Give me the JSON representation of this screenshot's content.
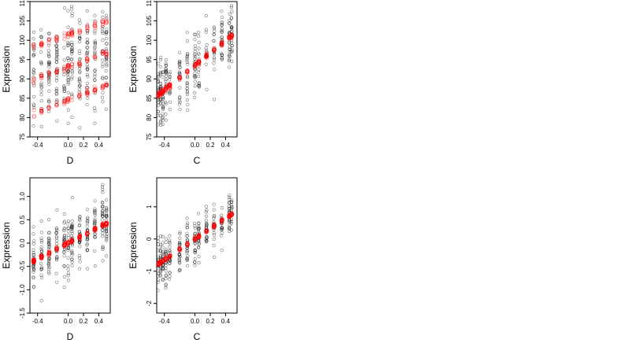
{
  "chart_data": [
    {
      "type": "scatter",
      "xlabel": "D",
      "ylabel": "Expression",
      "xlim": [
        -0.5,
        0.55
      ],
      "ylim": [
        75,
        110
      ],
      "xticks": [
        -0.4,
        0.0,
        0.2,
        0.4
      ],
      "xtick_labels": [
        "-0.4",
        "0.0",
        "0.2",
        "0.4"
      ],
      "yticks": [
        75,
        80,
        85,
        90,
        95,
        100,
        105,
        110
      ],
      "ytick_labels": [
        "75",
        "80",
        "85",
        "90",
        "95",
        "100",
        "105",
        "110"
      ],
      "x_levels": [
        -0.45,
        -0.35,
        -0.25,
        -0.15,
        -0.05,
        0.0,
        0.05,
        0.15,
        0.25,
        0.35,
        0.45,
        0.5
      ],
      "observed": {
        "color": "#000000",
        "n": 300,
        "spread": 6.5,
        "center_intercept": 93.5,
        "center_slope": 6.0
      },
      "fitted": {
        "color": "#ff0000",
        "bands": [
          {
            "intercept": 84.5,
            "slope": 7.5
          },
          {
            "intercept": 93.0,
            "slope": 7.0
          },
          {
            "intercept": 101.5,
            "slope": 6.5
          }
        ]
      },
      "grid": false
    },
    {
      "type": "scatter",
      "xlabel": "C",
      "ylabel": "Expression",
      "xlim": [
        -0.5,
        0.55
      ],
      "ylim": [
        75,
        110
      ],
      "xticks": [
        -0.4,
        0.0,
        0.2,
        0.4
      ],
      "xtick_labels": [
        "-0.4",
        "0.0",
        "0.2",
        "0.4"
      ],
      "yticks": [
        75,
        80,
        85,
        90,
        95,
        100,
        105,
        110
      ],
      "ytick_labels": [
        "75",
        "80",
        "85",
        "90",
        "95",
        "100",
        "105",
        "110"
      ],
      "x_levels": [
        -0.48,
        -0.45,
        -0.42,
        -0.38,
        -0.33,
        -0.2,
        -0.1,
        0.0,
        0.05,
        0.15,
        0.25,
        0.35,
        0.45,
        0.48
      ],
      "observed": {
        "color": "#000000",
        "n": 300,
        "spread": 4.5,
        "center_intercept": 93.5,
        "center_slope": 16.0
      },
      "fitted": {
        "color": "#ff0000",
        "bands": [
          {
            "intercept": 93.5,
            "slope": 16.0
          }
        ]
      },
      "grid": false
    },
    {
      "type": "scatter",
      "xlabel": "D",
      "ylabel": "Expression",
      "xlim": [
        -0.5,
        0.55
      ],
      "ylim": [
        -1.5,
        1.4
      ],
      "xticks": [
        -0.4,
        0.0,
        0.2,
        0.4
      ],
      "xtick_labels": [
        "-0.4",
        "0.0",
        "0.2",
        "0.4"
      ],
      "yticks": [
        -1.5,
        -1.0,
        -0.5,
        0.0,
        0.5,
        1.0
      ],
      "ytick_labels": [
        "-1.5",
        "-1.0",
        "-0.5",
        "0.0",
        "0.5",
        "1.0"
      ],
      "x_levels": [
        -0.45,
        -0.35,
        -0.25,
        -0.15,
        -0.05,
        0.0,
        0.05,
        0.15,
        0.25,
        0.35,
        0.45,
        0.5
      ],
      "observed": {
        "color": "#000000",
        "n": 300,
        "spread": 0.32,
        "center_intercept": 0.0,
        "center_slope": 0.85
      },
      "fitted": {
        "color": "#ff0000",
        "bands": [
          {
            "intercept": 0.0,
            "slope": 0.85
          }
        ]
      },
      "grid": false
    },
    {
      "type": "scatter",
      "xlabel": "C",
      "ylabel": "Expression",
      "xlim": [
        -0.5,
        0.55
      ],
      "ylim": [
        -2.3,
        1.9
      ],
      "xticks": [
        -0.4,
        0.0,
        0.2,
        0.4
      ],
      "xtick_labels": [
        "-0.4",
        "0.0",
        "0.2",
        "0.4"
      ],
      "yticks": [
        -2,
        -1,
        0,
        1
      ],
      "ytick_labels": [
        "-2",
        "-1",
        "0",
        "1"
      ],
      "x_levels": [
        -0.48,
        -0.45,
        -0.42,
        -0.38,
        -0.33,
        -0.2,
        -0.1,
        0.0,
        0.05,
        0.15,
        0.25,
        0.35,
        0.45,
        0.48
      ],
      "observed": {
        "color": "#000000",
        "n": 300,
        "spread": 0.38,
        "center_intercept": 0.0,
        "center_slope": 1.6
      },
      "fitted": {
        "color": "#ff0000",
        "bands": [
          {
            "intercept": 0.0,
            "slope": 1.6
          }
        ]
      },
      "grid": false
    }
  ]
}
